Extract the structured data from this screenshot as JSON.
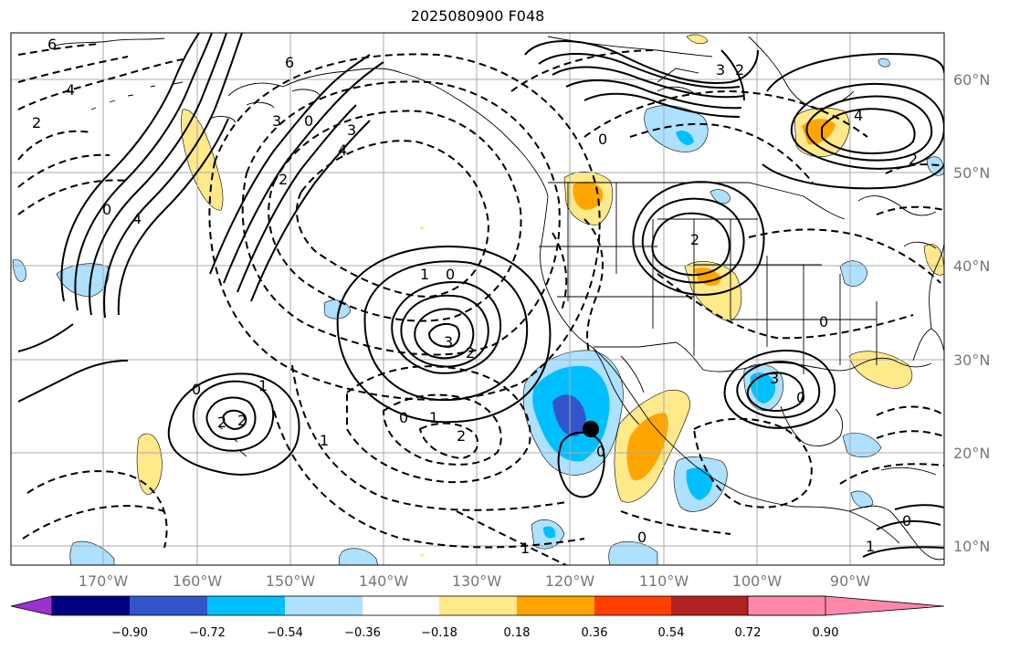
{
  "title": "2025080900 F048",
  "axes": {
    "longitude_labels": [
      "170°W",
      "160°W",
      "150°W",
      "140°W",
      "130°W",
      "120°W",
      "110°W",
      "100°W",
      "90°W"
    ],
    "latitude_labels": [
      "60°N",
      "50°N",
      "40°N",
      "30°N",
      "20°N",
      "10°N"
    ]
  },
  "colorbar": {
    "tick_labels": [
      "−0.90",
      "−0.72",
      "−0.54",
      "−0.36",
      "−0.18",
      "0.18",
      "0.36",
      "0.54",
      "0.72",
      "0.90"
    ],
    "colors": [
      "#9b30d0",
      "#000080",
      "#3355cc",
      "#00bfff",
      "#aee0ff",
      "#ffffff",
      "#ffe98a",
      "#ffa500",
      "#ff4000",
      "#b22222",
      "#ff88aa"
    ]
  },
  "fill_colors": {
    "neg_light": "#aee0ff",
    "neg_mid": "#00bfff",
    "neg_dark": "#3355cc",
    "pos_light": "#ffe98a",
    "pos_mid": "#ffa500"
  },
  "contour_labels": [
    {
      "text": "6"
    },
    {
      "text": "4"
    },
    {
      "text": "2"
    },
    {
      "text": "4"
    },
    {
      "text": "6"
    },
    {
      "text": "3"
    },
    {
      "text": "0"
    },
    {
      "text": "4"
    },
    {
      "text": "3"
    },
    {
      "text": "2"
    },
    {
      "text": "0"
    },
    {
      "text": "4"
    },
    {
      "text": "3"
    },
    {
      "text": "2"
    },
    {
      "text": "0"
    },
    {
      "text": "1"
    },
    {
      "text": "0"
    },
    {
      "text": "3"
    },
    {
      "text": "2"
    },
    {
      "text": "0"
    },
    {
      "text": "1"
    },
    {
      "text": "2"
    },
    {
      "text": "2"
    },
    {
      "text": "1"
    },
    {
      "text": "0"
    },
    {
      "text": "1"
    },
    {
      "text": "2"
    },
    {
      "text": "0"
    },
    {
      "text": "2"
    },
    {
      "text": "3"
    },
    {
      "text": "0"
    },
    {
      "text": "0"
    },
    {
      "text": "1"
    },
    {
      "text": "0"
    },
    {
      "text": "1"
    },
    {
      "text": "0"
    },
    {
      "text": "2"
    }
  ]
}
